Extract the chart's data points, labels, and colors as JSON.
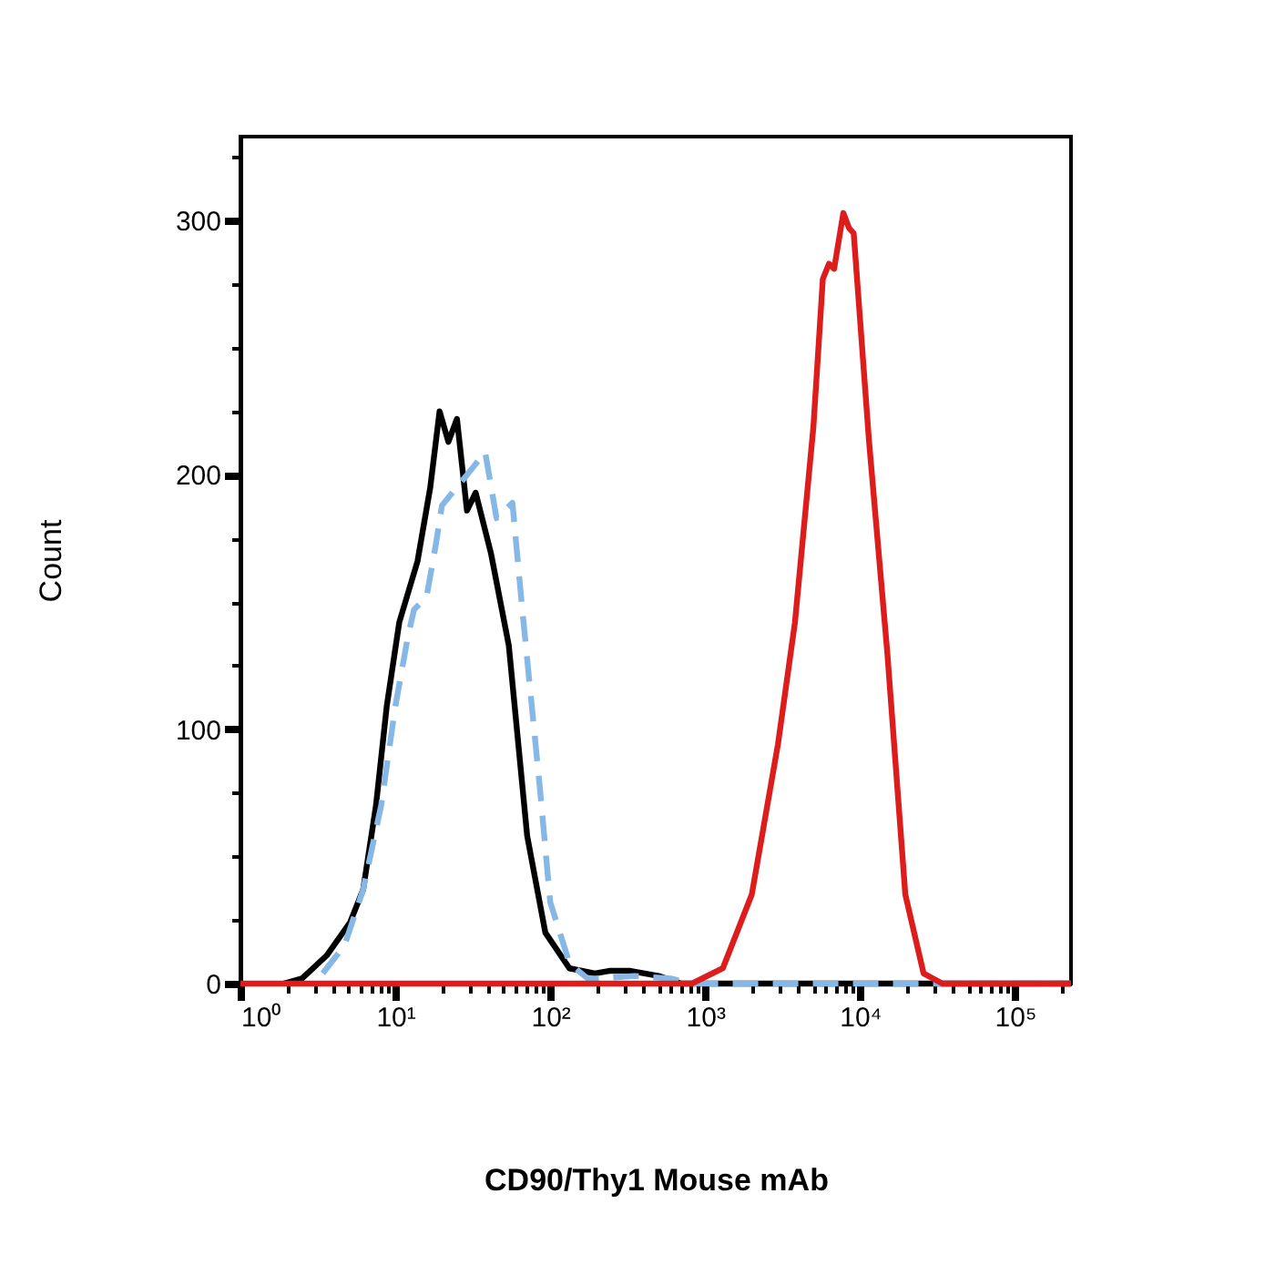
{
  "chart_data": {
    "type": "line",
    "xlabel": "CD90/Thy1 Mouse mAb",
    "ylabel": "Count",
    "log": "x",
    "grid": false,
    "marker": "none",
    "xlim": [
      1,
      230000
    ],
    "ylim": [
      0,
      333
    ],
    "xticks": [
      {
        "value": 1,
        "label": "10⁰"
      },
      {
        "value": 2,
        "label": null
      },
      {
        "value": 3,
        "label": null
      },
      {
        "value": 4,
        "label": null
      },
      {
        "value": 5,
        "label": null
      },
      {
        "value": 6,
        "label": null
      },
      {
        "value": 7,
        "label": null
      },
      {
        "value": 8,
        "label": null
      },
      {
        "value": 9,
        "label": null
      },
      {
        "value": 10,
        "label": "10¹"
      },
      {
        "value": 20,
        "label": null
      },
      {
        "value": 30,
        "label": null
      },
      {
        "value": 40,
        "label": null
      },
      {
        "value": 50,
        "label": null
      },
      {
        "value": 60,
        "label": null
      },
      {
        "value": 70,
        "label": null
      },
      {
        "value": 80,
        "label": null
      },
      {
        "value": 90,
        "label": null
      },
      {
        "value": 100,
        "label": "10²"
      },
      {
        "value": 200,
        "label": null
      },
      {
        "value": 300,
        "label": null
      },
      {
        "value": 400,
        "label": null
      },
      {
        "value": 500,
        "label": null
      },
      {
        "value": 600,
        "label": null
      },
      {
        "value": 700,
        "label": null
      },
      {
        "value": 800,
        "label": null
      },
      {
        "value": 900,
        "label": null
      },
      {
        "value": 1000,
        "label": "10³"
      },
      {
        "value": 2000,
        "label": null
      },
      {
        "value": 3000,
        "label": null
      },
      {
        "value": 4000,
        "label": null
      },
      {
        "value": 5000,
        "label": null
      },
      {
        "value": 6000,
        "label": null
      },
      {
        "value": 7000,
        "label": null
      },
      {
        "value": 8000,
        "label": null
      },
      {
        "value": 9000,
        "label": null
      },
      {
        "value": 10000,
        "label": "10⁴"
      },
      {
        "value": 20000,
        "label": null
      },
      {
        "value": 30000,
        "label": null
      },
      {
        "value": 40000,
        "label": null
      },
      {
        "value": 50000,
        "label": null
      },
      {
        "value": 60000,
        "label": null
      },
      {
        "value": 70000,
        "label": null
      },
      {
        "value": 80000,
        "label": null
      },
      {
        "value": 90000,
        "label": null
      },
      {
        "value": 100000,
        "label": "10⁵"
      },
      {
        "value": 200000,
        "label": null
      }
    ],
    "yticks": [
      0,
      {
        "value": 25,
        "label": null
      },
      {
        "value": 50,
        "label": null
      },
      {
        "value": 75,
        "label": null
      },
      100,
      {
        "value": 125,
        "label": null
      },
      {
        "value": 150,
        "label": null
      },
      {
        "value": 175,
        "label": null
      },
      200,
      {
        "value": 225,
        "label": null
      },
      {
        "value": 250,
        "label": null
      },
      {
        "value": 275,
        "label": null
      },
      300,
      {
        "value": 325,
        "label": null
      }
    ],
    "series": [
      {
        "color": "#000000",
        "line_style": "solid",
        "x": [
          1.9,
          2.5,
          3.6,
          5.1,
          6.2,
          7.5,
          8.8,
          10.6,
          13.9,
          16.8,
          19.3,
          22,
          25,
          29,
          33,
          41.5,
          54,
          71,
          93,
          133,
          194,
          240,
          330,
          500,
          700,
          230000
        ],
        "values": [
          0,
          2,
          11,
          24,
          37,
          70,
          109,
          142,
          166,
          195,
          225,
          213,
          222,
          186,
          193,
          169,
          133,
          58,
          20,
          6,
          4,
          5,
          5,
          3,
          0,
          0
        ]
      },
      {
        "color": "#85b8e6",
        "line_style": "dashed",
        "x": [
          3.4,
          4.7,
          6.2,
          8.1,
          10,
          12.1,
          13.2,
          15.9,
          18.3,
          20,
          29,
          38,
          45,
          57,
          66,
          86,
          100,
          133,
          174,
          200,
          350,
          600,
          800,
          230000
        ],
        "values": [
          4,
          15,
          37,
          70,
          109,
          137,
          147,
          152,
          173,
          188,
          200,
          209,
          183,
          189,
          147,
          76,
          32,
          8,
          2,
          2,
          3,
          2,
          0,
          0
        ]
      },
      {
        "color": "#dd1c1c",
        "line_style": "solid",
        "x": [
          1,
          820,
          1300,
          2000,
          2950,
          3800,
          5000,
          5750,
          6300,
          6800,
          7800,
          8500,
          9100,
          11400,
          15000,
          19600,
          25700,
          34000,
          230000
        ],
        "values": [
          0,
          0,
          6,
          35,
          94,
          142,
          219,
          277,
          283,
          281,
          303,
          297,
          295,
          214,
          130,
          35,
          4,
          0,
          0
        ]
      }
    ]
  }
}
